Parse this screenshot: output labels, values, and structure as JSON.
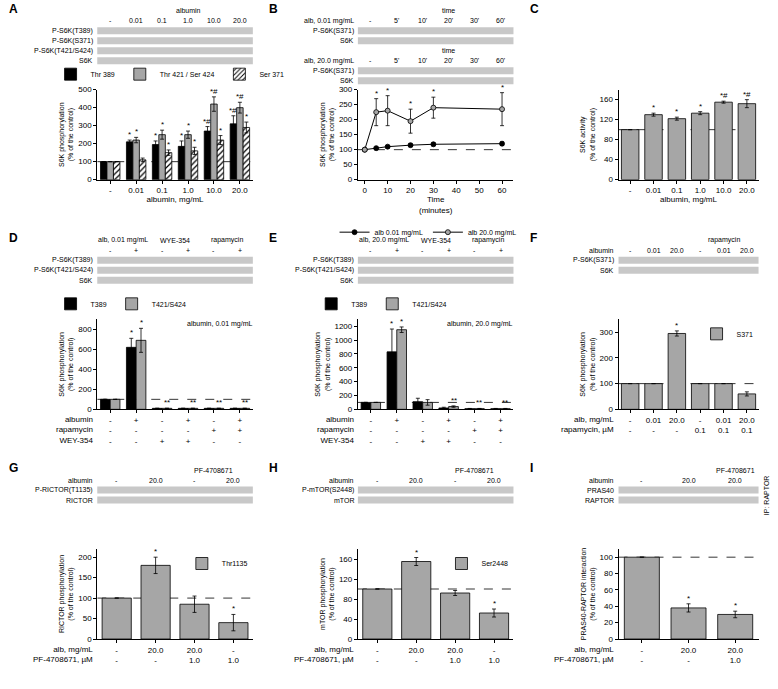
{
  "chart_data": [
    {
      "title": "A",
      "type": "bar",
      "categories": [
        "-",
        "0.01",
        "0.1",
        "1.0",
        "10.0",
        "20.0"
      ],
      "xlabel": "albumin, mg/mL",
      "ylabel": "S6K phosphorylation\n(% of the control)",
      "ylim": [
        0,
        500
      ],
      "yticks": [
        0,
        100,
        200,
        300,
        400,
        500
      ],
      "reference_line": 100,
      "legend": "top",
      "series": [
        {
          "name": "Thr 389",
          "color": "#000000",
          "values": [
            100,
            210,
            195,
            185,
            270,
            310
          ],
          "errors": [
            0,
            10,
            20,
            30,
            25,
            45
          ],
          "significance": [
            null,
            "*",
            "*",
            "*",
            "*#",
            "*#"
          ]
        },
        {
          "name": "Thr 421 / Ser 424",
          "color": "#a6a6a6",
          "values": [
            100,
            220,
            250,
            250,
            420,
            400
          ],
          "errors": [
            0,
            15,
            25,
            20,
            40,
            30
          ],
          "significance": [
            null,
            "*",
            "*",
            "*",
            "*#",
            "*#"
          ]
        },
        {
          "name": "Ser 371",
          "color": "#ffffff",
          "marker": "hatch",
          "values": [
            100,
            110,
            150,
            160,
            220,
            290
          ],
          "errors": [
            0,
            10,
            15,
            20,
            25,
            30
          ],
          "significance": [
            null,
            null,
            "*",
            "*",
            "*",
            "*"
          ]
        }
      ],
      "blots": [
        {
          "labels_above": [
            {
              "text": "albumin",
              "lanes": [
                1,
                5
              ]
            }
          ],
          "lanes": [
            "-",
            "0.01",
            "0.1",
            "1.0",
            "10.0",
            "20.0"
          ],
          "rows": [
            "P-S6K(T389)",
            "P-S6K(S371)",
            "P-S6K(T421/S424)",
            "S6K"
          ]
        }
      ]
    },
    {
      "title": "B",
      "type": "line",
      "x": [
        0,
        5,
        10,
        20,
        30,
        60
      ],
      "xlabel": "Time\n(minutes)",
      "xlim": [
        -3,
        65
      ],
      "xticks": [
        0,
        10,
        20,
        30,
        40,
        50,
        60
      ],
      "ylabel": "S6K phosphorylation\n(% of the control)",
      "ylim": [
        0,
        300
      ],
      "yticks": [
        0,
        50,
        100,
        150,
        200,
        250,
        300
      ],
      "reference_line": 100,
      "legend": "bottom",
      "series": [
        {
          "name": "alb 0.01 mg/mL",
          "color": "#000000",
          "marker": "circle",
          "values": [
            100,
            105,
            110,
            115,
            118,
            120
          ],
          "errors": [
            0,
            3,
            4,
            5,
            5,
            6
          ]
        },
        {
          "name": "alb 20.0 mg/mL",
          "color": "#a6a6a6",
          "marker": "circle",
          "values": [
            100,
            225,
            230,
            195,
            240,
            235
          ],
          "errors": [
            0,
            45,
            50,
            40,
            35,
            55
          ],
          "significance": [
            null,
            "*",
            "*",
            "*",
            "*",
            "*"
          ]
        }
      ],
      "blots": [
        {
          "label": "alb, 0.01 mg/mL",
          "labels_above": [
            {
              "text": "time",
              "lanes": [
                1,
                5
              ]
            }
          ],
          "lanes": [
            "-",
            "5'",
            "10'",
            "20'",
            "30'",
            "60'"
          ],
          "rows": [
            "P-S6K(S371)",
            "S6K"
          ]
        },
        {
          "label": "alb, 20.0 mg/mL",
          "labels_above": [
            {
              "text": "time",
              "lanes": [
                1,
                5
              ]
            }
          ],
          "lanes": [
            "-",
            "5'",
            "10'",
            "20'",
            "30'",
            "60'"
          ],
          "rows": [
            "P-S6K(S371)",
            "S6K"
          ]
        }
      ]
    },
    {
      "title": "C",
      "type": "bar",
      "categories": [
        "-",
        "0.01",
        "0.1",
        "1.0",
        "10.0",
        "20.0"
      ],
      "xlabel": "albumin, mg/mL",
      "ylabel": "S6K activity\n(% of the control)",
      "ylim": [
        0,
        180
      ],
      "yticks": [
        0,
        40,
        80,
        120,
        160
      ],
      "reference_line": 100,
      "series": [
        {
          "color": "#a6a6a6",
          "values": [
            100,
            130,
            122,
            133,
            155,
            152
          ],
          "errors": [
            0,
            3,
            3,
            3,
            2,
            8
          ],
          "significance": [
            null,
            "*",
            "*",
            "*",
            "*#",
            "*#"
          ]
        }
      ]
    },
    {
      "title": "D",
      "type": "bar",
      "categories": [
        "-\n-\n-",
        "+\n-\n-",
        "-\n-\n+",
        "+\n-\n+",
        "-\n+\n-",
        "+\n+\n-"
      ],
      "x_row_labels": [
        "albumin",
        "rapamycin",
        "WEY-354"
      ],
      "subtitle": "albumin, 0.01 mg/mL",
      "ylabel": "S6K phosphorylation\n(% of the control)",
      "ylim": [
        0,
        900
      ],
      "yticks": [
        0,
        200,
        400,
        600,
        800
      ],
      "reference_line": 100,
      "legend": "top",
      "series": [
        {
          "name": "T389",
          "color": "#000000",
          "values": [
            100,
            620,
            10,
            10,
            10,
            10
          ],
          "errors": [
            0,
            90,
            2,
            2,
            2,
            2
          ],
          "significance": [
            null,
            "*",
            null,
            null,
            null,
            null
          ]
        },
        {
          "name": "T421/S424",
          "color": "#a6a6a6",
          "values": [
            100,
            690,
            10,
            10,
            10,
            10
          ],
          "errors": [
            0,
            120,
            2,
            2,
            2,
            2
          ],
          "significance": [
            null,
            "*",
            "**",
            "**",
            "**",
            "**"
          ]
        }
      ],
      "blots": [
        {
          "labels_above": [
            {
              "text": "alb, 0.01 mg/mL",
              "lanes": [
                0,
                1
              ]
            },
            {
              "text": "WYE-354",
              "lanes": [
                2,
                3
              ]
            },
            {
              "text": "rapamycin",
              "lanes": [
                4,
                5
              ]
            }
          ],
          "lanes": [
            "-",
            "+",
            "-",
            "+",
            "-",
            "+"
          ],
          "rows": [
            "P-S6K(T389)",
            "P-S6K(T421/S424)",
            "S6K"
          ]
        }
      ]
    },
    {
      "title": "E",
      "type": "bar",
      "categories": [
        "-\n-\n-",
        "+\n-\n-",
        "-\n-\n+",
        "+\n-\n+",
        "-\n+\n-",
        "+\n+\n-"
      ],
      "x_row_labels": [
        "albumin",
        "rapamycin",
        "WEY-354"
      ],
      "subtitle": "albumin, 20.0 mg/mL",
      "ylabel": "S6K phosphorylation\n(% of the control)",
      "ylim": [
        0,
        1300
      ],
      "yticks": [
        0,
        200,
        400,
        600,
        800,
        1000,
        1200
      ],
      "reference_line": 100,
      "legend": "top",
      "series": [
        {
          "name": "T389",
          "color": "#000000",
          "values": [
            100,
            830,
            110,
            20,
            10,
            10
          ],
          "errors": [
            0,
            330,
            50,
            10,
            3,
            3
          ],
          "significance": [
            null,
            "*",
            null,
            null,
            null,
            null
          ]
        },
        {
          "name": "T421/S424",
          "color": "#a6a6a6",
          "values": [
            100,
            1150,
            100,
            40,
            10,
            10
          ],
          "errors": [
            0,
            40,
            40,
            10,
            3,
            3
          ],
          "significance": [
            null,
            "*",
            null,
            "**",
            "**",
            "**"
          ]
        }
      ],
      "blots": [
        {
          "labels_above": [
            {
              "text": "alb, 20.0 mg/mL",
              "lanes": [
                0,
                1
              ]
            },
            {
              "text": "WYE-354",
              "lanes": [
                2,
                3
              ]
            },
            {
              "text": "rapamycin",
              "lanes": [
                4,
                5
              ]
            }
          ],
          "lanes": [
            "-",
            "+",
            "-",
            "+",
            "-",
            "+"
          ],
          "rows": [
            "P-S6K(T389)",
            "P-S6K(T421/S424)",
            "S6K"
          ]
        }
      ]
    },
    {
      "title": "F",
      "type": "bar",
      "categories": [
        "-\n-",
        "0.01\n-",
        "20.0\n-",
        "-\n0.1",
        "0.01\n0.1",
        "20.0\n0.1"
      ],
      "x_row_labels": [
        "alb, mg/mL",
        "rapamycin, µM"
      ],
      "ylabel": "S6K phosphorylation\n(% of the control)",
      "ylim": [
        0,
        350
      ],
      "yticks": [
        0,
        100,
        200,
        300
      ],
      "reference_line": 100,
      "legend": "upper right",
      "series": [
        {
          "name": "S371",
          "color": "#a6a6a6",
          "values": [
            100,
            100,
            295,
            100,
            100,
            60
          ],
          "errors": [
            0,
            0,
            10,
            0,
            0,
            8
          ],
          "significance": [
            null,
            null,
            "*",
            null,
            null,
            null
          ]
        }
      ],
      "blots": [
        {
          "label": "albumin",
          "labels_above": [
            {
              "text": "rapamycin",
              "lanes": [
                3,
                5
              ]
            }
          ],
          "lanes": [
            "-",
            "0.01",
            "20.0",
            "-",
            "0.01",
            "20.0"
          ],
          "rows": [
            "P-S6K(S371)",
            "S6K"
          ]
        }
      ]
    },
    {
      "title": "G",
      "type": "bar",
      "categories": [
        "-\n-",
        "20.0\n-",
        "20.0\n1.0",
        "-\n1.0"
      ],
      "x_row_labels": [
        "alb, mg/mL",
        "PF-4708671, µM"
      ],
      "ylabel": "RICTOR phosphorylation\n(% of the control)",
      "ylim": [
        0,
        220
      ],
      "yticks": [
        0,
        50,
        100,
        150,
        200
      ],
      "reference_line": 100,
      "legend": "upper right",
      "series": [
        {
          "name": "Thr1135",
          "color": "#a6a6a6",
          "values": [
            100,
            180,
            85,
            40
          ],
          "errors": [
            0,
            20,
            20,
            20
          ],
          "significance": [
            null,
            "*",
            null,
            "*"
          ]
        }
      ],
      "blots": [
        {
          "label": "albumin",
          "labels_above": [
            {
              "text": "PF-4708671",
              "lanes": [
                2,
                3
              ]
            }
          ],
          "lanes": [
            "-",
            "20.0",
            "-",
            "20.0"
          ],
          "rows": [
            "P-RICTOR(T1135)",
            "RICTOR"
          ]
        }
      ]
    },
    {
      "title": "H",
      "type": "bar",
      "categories": [
        "-\n-",
        "20.0\n-",
        "20.0\n1.0",
        "-\n1.0"
      ],
      "x_row_labels": [
        "alb, mg/mL",
        "PF-4708671, µM"
      ],
      "ylabel": "mTOR phosphorylation\n(% of the control)",
      "ylim": [
        0,
        180
      ],
      "yticks": [
        0,
        40,
        80,
        120,
        160
      ],
      "reference_line": 100,
      "legend": "upper right",
      "series": [
        {
          "name": "Ser2448",
          "color": "#a6a6a6",
          "values": [
            100,
            155,
            92,
            52
          ],
          "errors": [
            0,
            8,
            5,
            8
          ],
          "significance": [
            null,
            "*",
            null,
            "*"
          ]
        }
      ],
      "blots": [
        {
          "label": "albumin",
          "labels_above": [
            {
              "text": "PF-4708671",
              "lanes": [
                2,
                3
              ]
            }
          ],
          "lanes": [
            "-",
            "20.0",
            "-",
            "20.0"
          ],
          "rows": [
            "P-mTOR(S2448)",
            "mTOR"
          ]
        }
      ]
    },
    {
      "title": "I",
      "type": "bar",
      "categories": [
        "-\n-",
        "20.0\n-",
        "20.0\n1.0"
      ],
      "x_row_labels": [
        "alb, mg/mL",
        "PF-4708671, µM"
      ],
      "ylabel": "PRAS40-RAPTOR interaction\n(% of the control)",
      "ylim": [
        0,
        110
      ],
      "yticks": [
        0,
        20,
        40,
        60,
        80,
        100
      ],
      "reference_line": 100,
      "series": [
        {
          "color": "#a6a6a6",
          "values": [
            100,
            38,
            30
          ],
          "errors": [
            0,
            5,
            4
          ],
          "significance": [
            null,
            "*",
            "*"
          ]
        }
      ],
      "blots": [
        {
          "label": "albumin",
          "labels_above": [
            {
              "text": "PF-4708671",
              "lanes": [
                2,
                2
              ]
            }
          ],
          "lanes": [
            "-",
            "20.0",
            "20.0"
          ],
          "rows": [
            "PRAS40",
            "RAPTOR"
          ],
          "right_label": "IP: RAPTOR"
        }
      ]
    }
  ]
}
